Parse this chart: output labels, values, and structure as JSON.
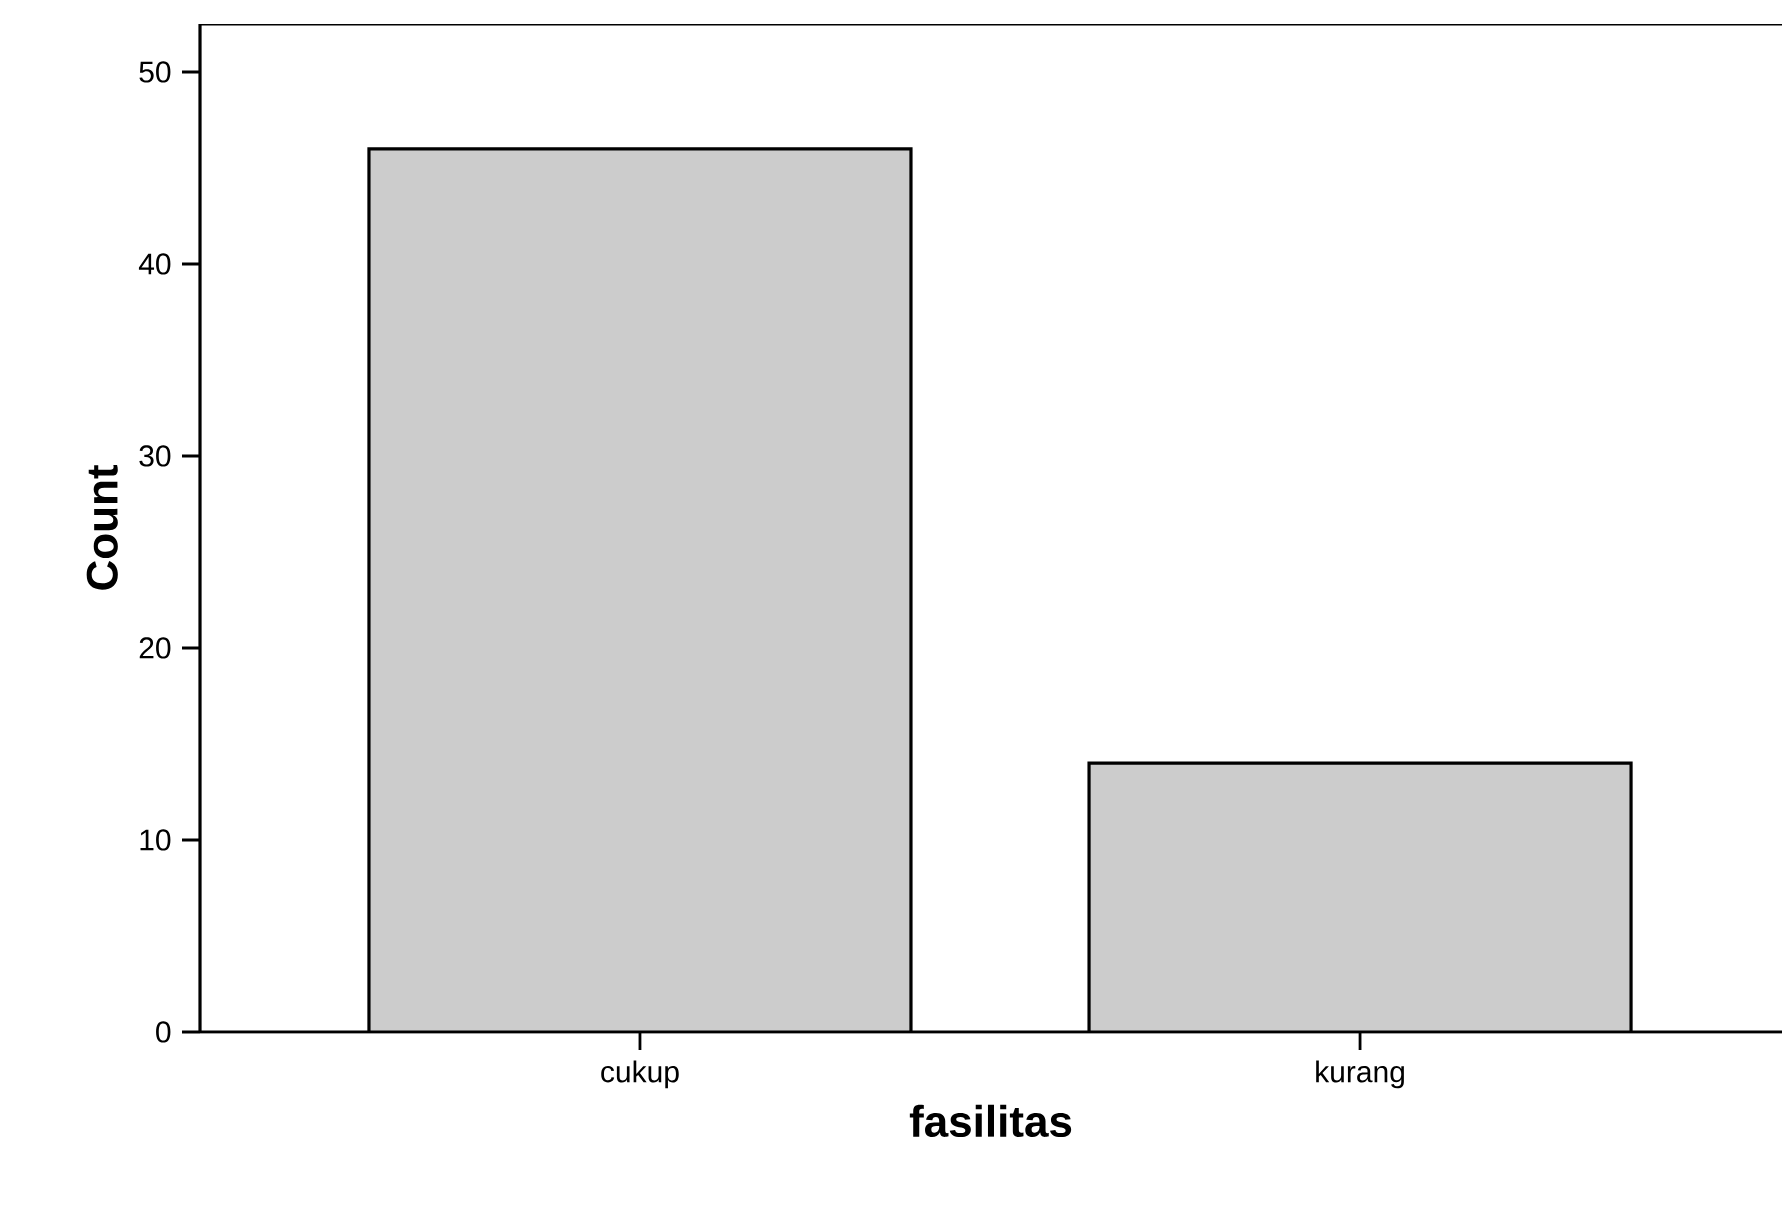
{
  "chart_data": {
    "type": "bar",
    "xlabel": "fasilitas",
    "ylabel": "Count",
    "categories": [
      "cukup",
      "kurang"
    ],
    "values": [
      46,
      14
    ],
    "color": "#cccccc",
    "ylim": [
      0,
      52.5
    ],
    "yticks": [
      0,
      10,
      20,
      30,
      40,
      50
    ],
    "grid": false
  }
}
